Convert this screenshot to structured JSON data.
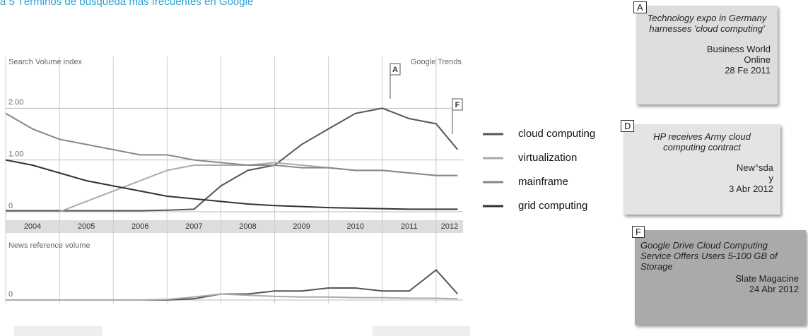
{
  "title": "a 5 Términos de búsqueda más frecuentes en Google",
  "chart_data": [
    {
      "type": "line",
      "y_label": "Search Volume index",
      "brand": "Google Trends",
      "x": [
        2004,
        2004.5,
        2005,
        2005.5,
        2006,
        2006.5,
        2007,
        2007.5,
        2008,
        2008.5,
        2009,
        2009.5,
        2010,
        2010.5,
        2011,
        2011.5,
        2012,
        2012.4
      ],
      "xlim": [
        2004,
        2012.5
      ],
      "xticks": [
        2004,
        2005,
        2006,
        2007,
        2008,
        2009,
        2010,
        2011,
        2012
      ],
      "ylim": [
        0,
        3
      ],
      "yticks": [
        0,
        {
          "value": 1,
          "label": "1.00"
        },
        {
          "value": 2,
          "label": "2.00"
        }
      ],
      "grid": true,
      "legend": "right",
      "series": [
        {
          "name": "cloud computing",
          "color": "#555555",
          "values": [
            0.02,
            0.02,
            0.02,
            0.02,
            0.02,
            0.02,
            0.03,
            0.05,
            0.5,
            0.8,
            0.9,
            1.3,
            1.6,
            1.9,
            2.0,
            1.8,
            1.7,
            1.2
          ]
        },
        {
          "name": "virtualization",
          "color": "#aaaaaa",
          "values": [
            null,
            null,
            0,
            0.2,
            0.4,
            0.6,
            0.8,
            0.9,
            0.9,
            0.9,
            0.95,
            0.9,
            0.85,
            0.8,
            0.8,
            0.75,
            0.7,
            0.7
          ]
        },
        {
          "name": "mainframe",
          "color": "#888888",
          "values": [
            1.9,
            1.6,
            1.4,
            1.3,
            1.2,
            1.1,
            1.1,
            1.0,
            0.95,
            0.9,
            0.9,
            0.85,
            0.85,
            0.8,
            0.8,
            0.75,
            0.7,
            0.7
          ]
        },
        {
          "name": "grid computing",
          "color": "#333333",
          "values": [
            1.0,
            0.9,
            0.75,
            0.6,
            0.5,
            0.4,
            0.3,
            0.25,
            0.2,
            0.15,
            0.12,
            0.1,
            0.08,
            0.07,
            0.06,
            0.05,
            0.05,
            0.05
          ]
        }
      ]
    },
    {
      "type": "line",
      "y_label": "News reference volume",
      "x": [
        2004,
        2004.5,
        2005,
        2005.5,
        2006,
        2006.5,
        2007,
        2007.5,
        2008,
        2008.5,
        2009,
        2009.5,
        2010,
        2010.5,
        2011,
        2011.5,
        2012,
        2012.4
      ],
      "xlim": [
        2004,
        2012.5
      ],
      "ylim": [
        0,
        1
      ],
      "yticks": [
        0
      ],
      "series": [
        {
          "color": "#555555",
          "values": [
            0,
            0,
            0,
            0,
            0,
            0,
            0,
            0.02,
            0.1,
            0.1,
            0.15,
            0.15,
            0.2,
            0.2,
            0.15,
            0.15,
            0.5,
            0.1
          ]
        },
        {
          "color": "#aaaaaa",
          "values": [
            0,
            0,
            0,
            0,
            0,
            0,
            0.01,
            0.05,
            0.1,
            0.08,
            0.06,
            0.05,
            0.05,
            0.04,
            0.04,
            0.03,
            0.03,
            0.02
          ]
        }
      ]
    }
  ],
  "notes": [
    {
      "letter": "A",
      "text": "Technology expo in Germany harnesses 'cloud computing'",
      "source": "Business World Online",
      "date": "28 Fe 2011"
    },
    {
      "letter": "D",
      "text": "HP receives Army cloud computing contract",
      "source": "New°sda y",
      "date": "3 Abr 2012"
    },
    {
      "letter": "F",
      "text": "Google Drive Cloud Computing Service Offers Users 5-100 GB of Storage",
      "source": "Slate Magacine",
      "date": "24 Abr 2012"
    }
  ]
}
